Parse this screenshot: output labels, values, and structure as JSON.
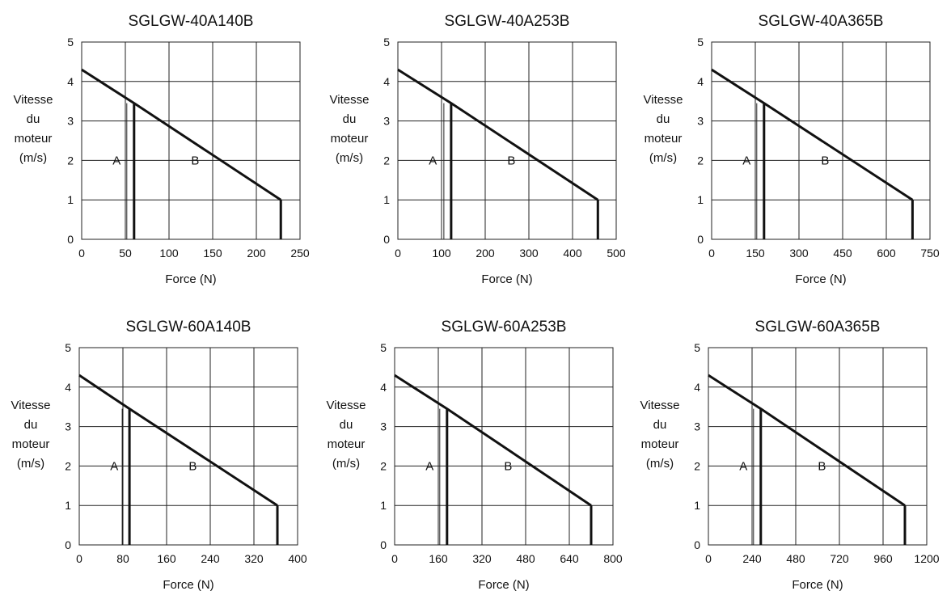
{
  "chart_data": [
    {
      "type": "line",
      "title": "SGLGW-40A140B",
      "xlabel": "Force (N)",
      "ylabel_lines": [
        "Vitesse",
        "du",
        "moteur",
        "(m/s)"
      ],
      "xlim": [
        0,
        250
      ],
      "ylim": [
        0,
        5
      ],
      "xticks": [
        0,
        50,
        100,
        150,
        200,
        250
      ],
      "yticks": [
        0,
        1,
        2,
        3,
        4,
        5
      ],
      "grid": true,
      "region_labels": [
        "A",
        "B"
      ],
      "series": [
        {
          "x": [
            0,
            60,
            228
          ],
          "y": [
            4.3,
            3.45,
            1.0
          ]
        },
        {
          "x": [
            60,
            60
          ],
          "y": [
            3.45,
            0
          ]
        },
        {
          "x": [
            228,
            228
          ],
          "y": [
            1.0,
            0
          ]
        }
      ]
    },
    {
      "type": "line",
      "title": "SGLGW-40A253B",
      "xlabel": "Force (N)",
      "ylabel_lines": [
        "Vitesse",
        "du",
        "moteur",
        "(m/s)"
      ],
      "xlim": [
        0,
        500
      ],
      "ylim": [
        0,
        5
      ],
      "xticks": [
        0,
        100,
        200,
        300,
        400,
        500
      ],
      "yticks": [
        0,
        1,
        2,
        3,
        4,
        5
      ],
      "grid": true,
      "region_labels": [
        "A",
        "B"
      ],
      "series": [
        {
          "x": [
            0,
            122,
            458
          ],
          "y": [
            4.3,
            3.45,
            1.0
          ]
        },
        {
          "x": [
            122,
            122
          ],
          "y": [
            3.45,
            0
          ]
        },
        {
          "x": [
            458,
            458
          ],
          "y": [
            1.0,
            0
          ]
        }
      ]
    },
    {
      "type": "line",
      "title": "SGLGW-40A365B",
      "xlabel": "Force (N)",
      "ylabel_lines": [
        "Vitesse",
        "du",
        "moteur",
        "(m/s)"
      ],
      "xlim": [
        0,
        750
      ],
      "ylim": [
        0,
        5
      ],
      "xticks": [
        0,
        150,
        300,
        450,
        600,
        750
      ],
      "yticks": [
        0,
        1,
        2,
        3,
        4,
        5
      ],
      "grid": true,
      "region_labels": [
        "A",
        "B"
      ],
      "series": [
        {
          "x": [
            0,
            180,
            690
          ],
          "y": [
            4.3,
            3.45,
            1.0
          ]
        },
        {
          "x": [
            180,
            180
          ],
          "y": [
            3.45,
            0
          ]
        },
        {
          "x": [
            690,
            690
          ],
          "y": [
            1.0,
            0
          ]
        }
      ]
    },
    {
      "type": "line",
      "title": "SGLGW-60A140B",
      "xlabel": "Force (N)",
      "ylabel_lines": [
        "Vitesse",
        "du",
        "moteur",
        "(m/s)"
      ],
      "xlim": [
        0,
        400
      ],
      "ylim": [
        0,
        5
      ],
      "xticks": [
        0,
        80,
        160,
        240,
        320,
        400
      ],
      "yticks": [
        0,
        1,
        2,
        3,
        4,
        5
      ],
      "grid": true,
      "region_labels": [
        "A",
        "B"
      ],
      "series": [
        {
          "x": [
            0,
            92,
            363
          ],
          "y": [
            4.3,
            3.45,
            1.0
          ]
        },
        {
          "x": [
            92,
            92
          ],
          "y": [
            3.45,
            0
          ]
        },
        {
          "x": [
            363,
            363
          ],
          "y": [
            1.0,
            0
          ]
        }
      ]
    },
    {
      "type": "line",
      "title": "SGLGW-60A253B",
      "xlabel": "Force (N)",
      "ylabel_lines": [
        "Vitesse",
        "du",
        "moteur",
        "(m/s)"
      ],
      "xlim": [
        0,
        800
      ],
      "ylim": [
        0,
        5
      ],
      "xticks": [
        0,
        160,
        320,
        480,
        640,
        800
      ],
      "yticks": [
        0,
        1,
        2,
        3,
        4,
        5
      ],
      "grid": true,
      "region_labels": [
        "A",
        "B"
      ],
      "series": [
        {
          "x": [
            0,
            192,
            720
          ],
          "y": [
            4.3,
            3.45,
            1.0
          ]
        },
        {
          "x": [
            192,
            192
          ],
          "y": [
            3.45,
            0
          ]
        },
        {
          "x": [
            720,
            720
          ],
          "y": [
            1.0,
            0
          ]
        }
      ]
    },
    {
      "type": "line",
      "title": "SGLGW-60A365B",
      "xlabel": "Force (N)",
      "ylabel_lines": [
        "Vitesse",
        "du",
        "moteur",
        "(m/s)"
      ],
      "xlim": [
        0,
        1200
      ],
      "ylim": [
        0,
        5
      ],
      "xticks": [
        0,
        240,
        480,
        720,
        960,
        1200
      ],
      "yticks": [
        0,
        1,
        2,
        3,
        4,
        5
      ],
      "grid": true,
      "region_labels": [
        "A",
        "B"
      ],
      "series": [
        {
          "x": [
            0,
            288,
            1080
          ],
          "y": [
            4.3,
            3.45,
            1.0
          ]
        },
        {
          "x": [
            288,
            288
          ],
          "y": [
            3.45,
            0
          ]
        },
        {
          "x": [
            1080,
            1080
          ],
          "y": [
            1.0,
            0
          ]
        }
      ]
    }
  ]
}
